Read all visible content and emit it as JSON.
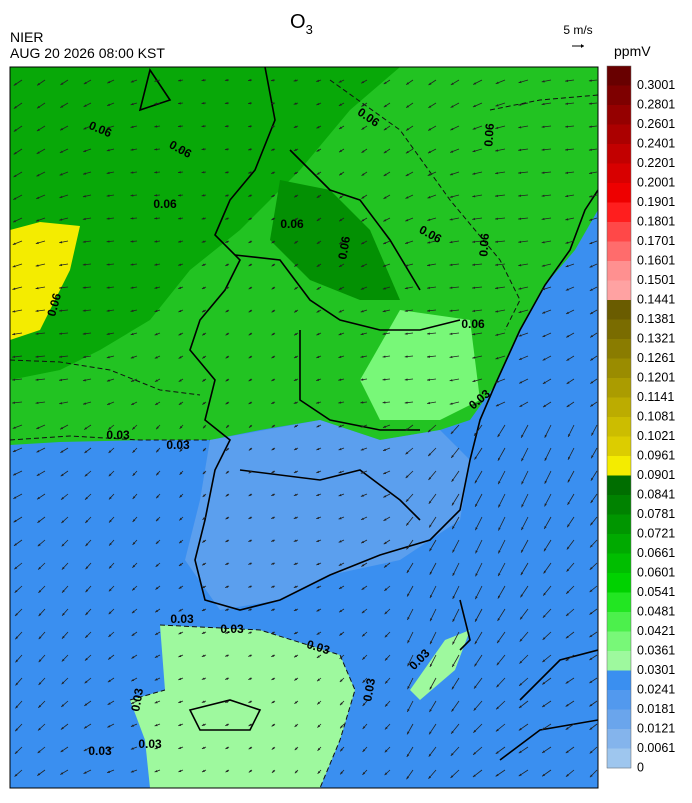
{
  "header": {
    "title": "O",
    "title_subscript": "3",
    "agency": "NIER",
    "datetime": "AUG 20 2026 08:00 KST",
    "vector_scale": "5 m/s",
    "unit": "ppmV"
  },
  "colorbar": {
    "labels": [
      "0.3001",
      "0.2801",
      "0.2601",
      "0.2401",
      "0.2201",
      "0.2001",
      "0.1901",
      "0.1801",
      "0.1701",
      "0.1601",
      "0.1501",
      "0.1441",
      "0.1381",
      "0.1321",
      "0.1261",
      "0.1201",
      "0.1141",
      "0.1081",
      "0.1021",
      "0.0961",
      "0.0901",
      "0.0841",
      "0.0781",
      "0.0721",
      "0.0661",
      "0.0601",
      "0.0541",
      "0.0481",
      "0.0421",
      "0.0361",
      "0.0301",
      "0.0241",
      "0.0181",
      "0.0121",
      "0.0061",
      "0"
    ],
    "colors": [
      "#680000",
      "#7e0000",
      "#950000",
      "#ab0000",
      "#c20000",
      "#d80000",
      "#ee0000",
      "#ff1e1e",
      "#ff4848",
      "#ff6c6c",
      "#ff9090",
      "#ffa2a2",
      "#6a5c00",
      "#7a6c00",
      "#8a7c00",
      "#9a8c00",
      "#ab9c00",
      "#bcac00",
      "#ccbd00",
      "#dccd00",
      "#f4ec00",
      "#006e00",
      "#008200",
      "#009600",
      "#00aa00",
      "#00be00",
      "#00d200",
      "#22e622",
      "#4cf04c",
      "#78f878",
      "#9ef99e",
      "#3a8ff0",
      "#5299ee",
      "#6aa5ec",
      "#84b4ec",
      "#9ec6ee"
    ]
  },
  "contour_labels": [
    "0.06",
    "0.06",
    "0.06",
    "0.06",
    "0.06",
    "0.06",
    "0.06",
    "0.06",
    "0.06",
    "0.06",
    "0.06",
    "0.03",
    "0.03",
    "0.03",
    "0.03",
    "0.03",
    "0.03",
    "0.03",
    "0.03",
    "0.03",
    "0.03",
    "0.03"
  ]
}
